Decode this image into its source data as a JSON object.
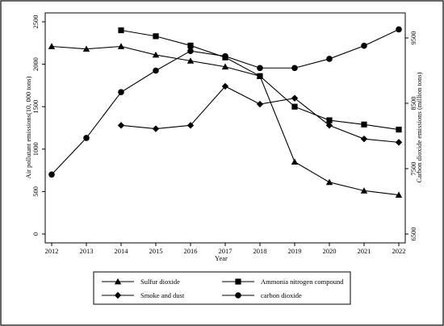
{
  "chart_data": {
    "type": "line",
    "xlabel": "Year",
    "ylabel_left": "Air pollutant emissions(10, 000 tons)",
    "ylabel_right": "Carbon dioxide emissions (million tons)",
    "x": [
      2012,
      2013,
      2014,
      2015,
      2016,
      2017,
      2018,
      2019,
      2020,
      2021,
      2022
    ],
    "ylim_left": [
      0,
      2500
    ],
    "yticks_left": [
      0,
      500,
      1000,
      1500,
      2000,
      2500
    ],
    "ylim_right": [
      6500,
      9500
    ],
    "yticks_right": [
      6500,
      7500,
      8500,
      9500
    ],
    "grid": false,
    "legend_position": "bottom",
    "series": [
      {
        "name": "Sulfur dioxide",
        "axis": "left",
        "marker": "triangle",
        "x": [
          2012,
          2013,
          2014,
          2015,
          2016,
          2017,
          2018,
          2019,
          2020,
          2021,
          2022
        ],
        "values": [
          2210,
          2180,
          2210,
          2110,
          2040,
          1970,
          1860,
          850,
          610,
          510,
          460
        ]
      },
      {
        "name": "Ammonia nitrogen compound",
        "axis": "left",
        "marker": "square",
        "x": [
          2014,
          2015,
          2016,
          2017,
          2018,
          2019,
          2020,
          2021,
          2022
        ],
        "values": [
          2400,
          2330,
          2220,
          2080,
          1860,
          1500,
          1340,
          1290,
          1230
        ]
      },
      {
        "name": "Smoke and dust",
        "axis": "left",
        "marker": "diamond",
        "x": [
          2014,
          2015,
          2016,
          2017,
          2018,
          2019,
          2020,
          2021,
          2022
        ],
        "values": [
          1280,
          1240,
          1280,
          1740,
          1530,
          1600,
          1280,
          1120,
          1080
        ]
      },
      {
        "name": "carbon dioxide",
        "axis": "right",
        "marker": "circle",
        "x": [
          2012,
          2013,
          2014,
          2015,
          2016,
          2017,
          2018,
          2019,
          2020,
          2021,
          2022
        ],
        "values": [
          7410,
          7970,
          8670,
          9000,
          9300,
          9220,
          9040,
          9040,
          9180,
          9380,
          9630
        ]
      }
    ]
  }
}
